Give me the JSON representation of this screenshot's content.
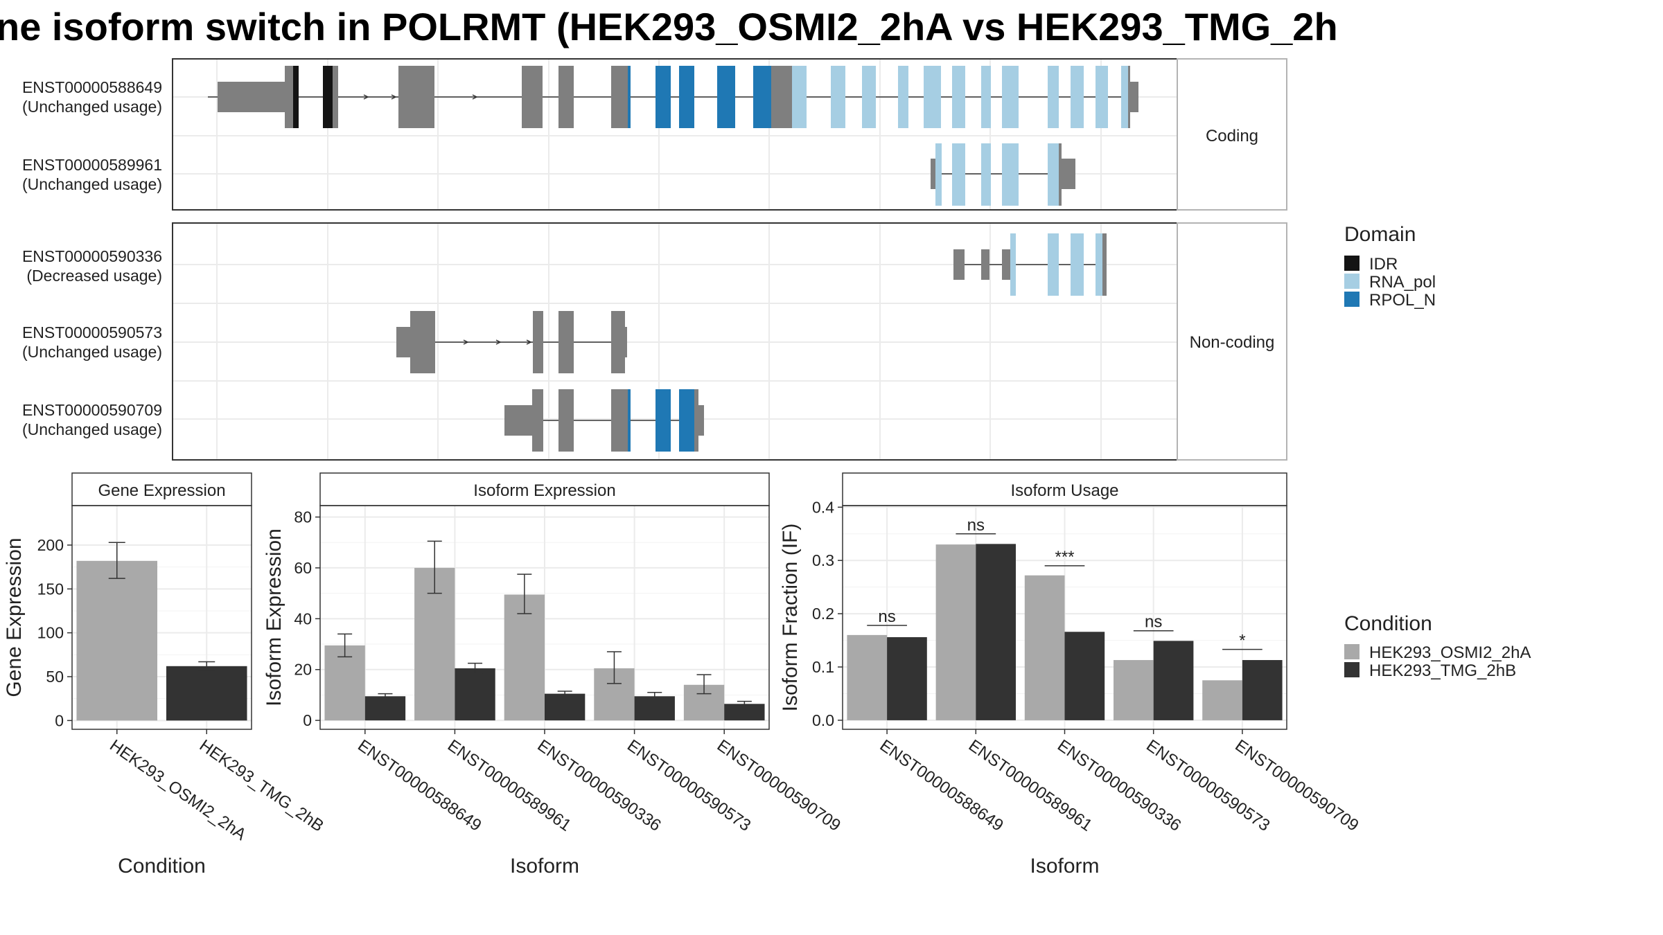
{
  "title": "ne isoform switch in POLRMT (HEK293_OSMI2_2hA vs HEK293_TMG_2h",
  "colors": {
    "IDR": "#141414",
    "RNA_pol": "#a6cee3",
    "RPOL_N": "#1f78b4",
    "utr": "#7f7f7f",
    "cond1": "#a9a9a9",
    "cond2": "#333333"
  },
  "transcript_panel": {
    "groups": [
      {
        "label": "Coding",
        "transcripts": [
          {
            "id": "ENST00000588649",
            "status": "(Unchanged usage)"
          },
          {
            "id": "ENST00000589961",
            "status": "(Unchanged usage)"
          }
        ]
      },
      {
        "label": "Non-coding",
        "transcripts": [
          {
            "id": "ENST00000590336",
            "status": "(Decreased usage)"
          },
          {
            "id": "ENST00000590573",
            "status": "(Unchanged usage)"
          },
          {
            "id": "ENST00000590709",
            "status": "(Unchanged usage)"
          }
        ]
      }
    ],
    "domain_legend": {
      "title": "Domain",
      "entries": [
        {
          "name": "IDR",
          "color": "#141414"
        },
        {
          "name": "RNA_pol",
          "color": "#a6cee3"
        },
        {
          "name": "RPOL_N",
          "color": "#1f78b4"
        }
      ]
    }
  },
  "condition_legend": {
    "title": "Condition",
    "entries": [
      {
        "name": "HEK293_OSMI2_2hA",
        "color": "#a9a9a9"
      },
      {
        "name": "HEK293_TMG_2hB",
        "color": "#333333"
      }
    ]
  },
  "chart_data": [
    {
      "type": "bar",
      "panel_title": "Gene Expression",
      "xlabel": "Condition",
      "ylabel": "Gene Expression",
      "categories": [
        "HEK293_OSMI2_2hA",
        "HEK293_TMG_2hB"
      ],
      "values": [
        182,
        62
      ],
      "error_low": [
        162,
        57
      ],
      "error_high": [
        203,
        67
      ],
      "ylim": [
        -10,
        245
      ],
      "yticks": [
        0,
        50,
        100,
        150,
        200
      ]
    },
    {
      "type": "bar",
      "panel_title": "Isoform Expression",
      "xlabel": "Isoform",
      "ylabel": "Isoform Expression",
      "categories": [
        "ENST00000588649",
        "ENST00000589961",
        "ENST00000590336",
        "ENST00000590573",
        "ENST00000590709"
      ],
      "series": [
        {
          "name": "HEK293_OSMI2_2hA",
          "values": [
            29.5,
            60,
            49.5,
            20.5,
            14
          ],
          "error_low": [
            25,
            50,
            42,
            14.5,
            10.5
          ],
          "error_high": [
            34,
            70.5,
            57.5,
            27,
            18
          ]
        },
        {
          "name": "HEK293_TMG_2hB",
          "values": [
            9.5,
            20.5,
            10.5,
            9.5,
            6.5
          ],
          "error_low": [
            9,
            18.5,
            9.5,
            8,
            6
          ],
          "error_high": [
            10.5,
            22.5,
            11.5,
            11,
            7.5
          ]
        }
      ],
      "ylim": [
        -3.5,
        84.5
      ],
      "yticks": [
        0,
        20,
        40,
        60,
        80
      ]
    },
    {
      "type": "bar",
      "panel_title": "Isoform Usage",
      "xlabel": "Isoform",
      "ylabel": "Isoform Fraction (IF)",
      "categories": [
        "ENST00000588649",
        "ENST00000589961",
        "ENST00000590336",
        "ENST00000590573",
        "ENST00000590709"
      ],
      "series": [
        {
          "name": "HEK293_OSMI2_2hA",
          "values": [
            0.16,
            0.33,
            0.272,
            0.113,
            0.075
          ]
        },
        {
          "name": "HEK293_TMG_2hB",
          "values": [
            0.156,
            0.331,
            0.166,
            0.149,
            0.113
          ]
        }
      ],
      "significance": [
        "ns",
        "ns",
        "***",
        "ns",
        "*"
      ],
      "significance_y": [
        0.178,
        0.35,
        0.29,
        0.168,
        0.133
      ],
      "ylim": [
        -0.017,
        0.403
      ],
      "yticks": [
        0,
        0.1,
        0.2,
        0.3,
        0.4
      ],
      "ytick_labels": [
        "0.0",
        "0.1",
        "0.2",
        "0.3",
        "0.4"
      ]
    }
  ]
}
